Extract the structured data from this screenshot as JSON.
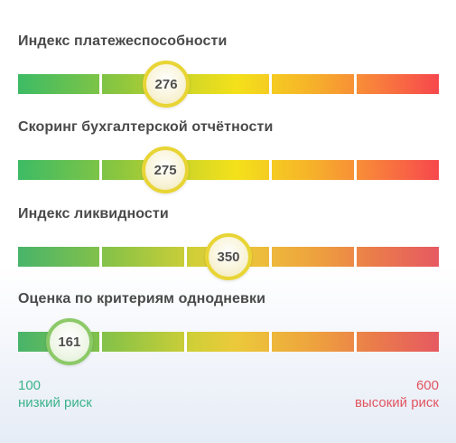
{
  "scale": {
    "min": 100,
    "max": 600,
    "min_label": "100",
    "max_label": "600",
    "low_risk_label": "низкий риск",
    "high_risk_label": "высокий риск"
  },
  "metrics": [
    {
      "title": "Индекс платежеспособности",
      "value": 276,
      "value_label": "276"
    },
    {
      "title": "Скоринг бухгалтерской отчётности",
      "value": 275,
      "value_label": "275"
    },
    {
      "title": "Индекс ликвидности",
      "value": 350,
      "value_label": "350"
    },
    {
      "title": "Оценка по критериям однодневки",
      "value": 161,
      "value_label": "161"
    }
  ],
  "colors": {
    "low_risk": "#3dbb65",
    "mid_risk": "#f4e11a",
    "high_risk": "#f7474d",
    "title_text": "#4a4a4a",
    "low_label": "#3cb38a",
    "high_label": "#e25560"
  }
}
